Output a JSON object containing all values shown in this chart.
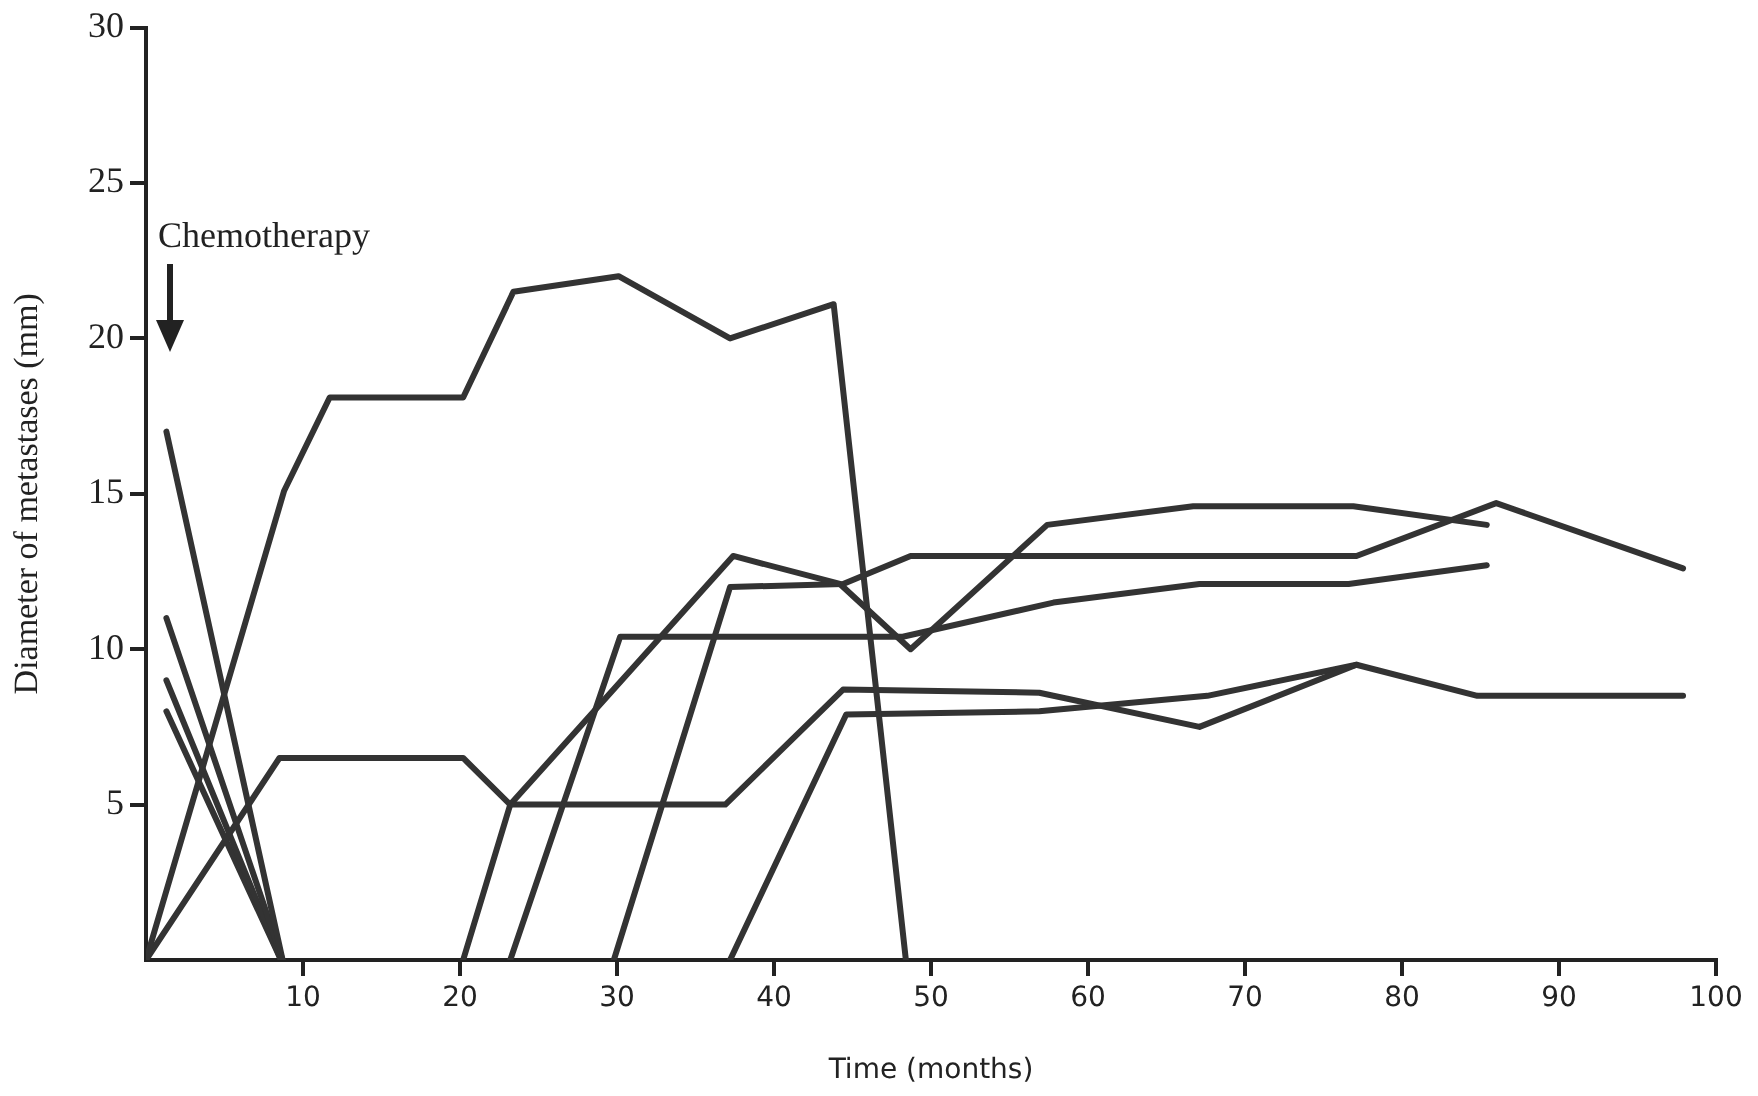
{
  "chart_data": {
    "type": "line",
    "xlabel": "Time (months)",
    "ylabel": "Diameter of metastases (mm)",
    "xlim": [
      0,
      100
    ],
    "ylim": [
      0,
      30
    ],
    "xticks": [
      10,
      20,
      30,
      40,
      50,
      60,
      70,
      80,
      90,
      100
    ],
    "yticks": [
      5,
      10,
      15,
      20,
      25,
      30
    ],
    "grid": false,
    "legend": false,
    "marker": "none",
    "line_style": "solid",
    "annotations": [
      "Chemotherapy"
    ],
    "series": [
      {
        "color": "#333333",
        "x": [
          0,
          8.8,
          11.7,
          20.2,
          23.4,
          30.1,
          37.2,
          43.8,
          48.4
        ],
        "values": [
          0,
          15.1,
          18.1,
          18.1,
          21.5,
          22.0,
          20.0,
          21.1,
          0
        ]
      },
      {
        "color": "#333333",
        "x": [
          0,
          8.5,
          20.2,
          23.2,
          36.9,
          44.4,
          56.9,
          67.1,
          77.1,
          84.8,
          97.9
        ],
        "values": [
          0,
          6.5,
          6.5,
          5.0,
          5.0,
          8.7,
          8.6,
          7.5,
          9.5,
          8.5,
          8.5
        ]
      },
      {
        "color": "#333333",
        "x": [
          20.2,
          23.2,
          37.4,
          44.2,
          48.7,
          57.4,
          66.7,
          76.9,
          85.4
        ],
        "values": [
          0,
          5.0,
          13.0,
          12.1,
          10.0,
          14.0,
          14.6,
          14.6,
          14.0
        ]
      },
      {
        "color": "#333333",
        "x": [
          23.2,
          30.2,
          46.8,
          48.2,
          57.8,
          67.1,
          76.6,
          85.4
        ],
        "values": [
          0,
          10.4,
          10.4,
          10.4,
          11.5,
          12.1,
          12.1,
          12.7
        ]
      },
      {
        "color": "#333333",
        "x": [
          29.8,
          37.2,
          44.4,
          48.7,
          77.1,
          86.0,
          97.9
        ],
        "values": [
          0,
          12.0,
          12.1,
          13.0,
          13.0,
          14.7,
          12.6
        ]
      },
      {
        "color": "#333333",
        "x": [
          37.2,
          44.6,
          56.9,
          67.6,
          77.1
        ],
        "values": [
          0,
          7.9,
          8.0,
          8.5,
          9.5
        ]
      },
      {
        "color": "#333333",
        "x": [
          1.3,
          8.7
        ],
        "values": [
          17.0,
          0
        ]
      },
      {
        "color": "#333333",
        "x": [
          1.3,
          8.7
        ],
        "values": [
          11.0,
          0
        ]
      },
      {
        "color": "#333333",
        "x": [
          1.3,
          8.6
        ],
        "values": [
          9.0,
          0
        ]
      },
      {
        "color": "#333333",
        "x": [
          1.3,
          8.6
        ],
        "values": [
          8.0,
          0
        ]
      }
    ]
  }
}
